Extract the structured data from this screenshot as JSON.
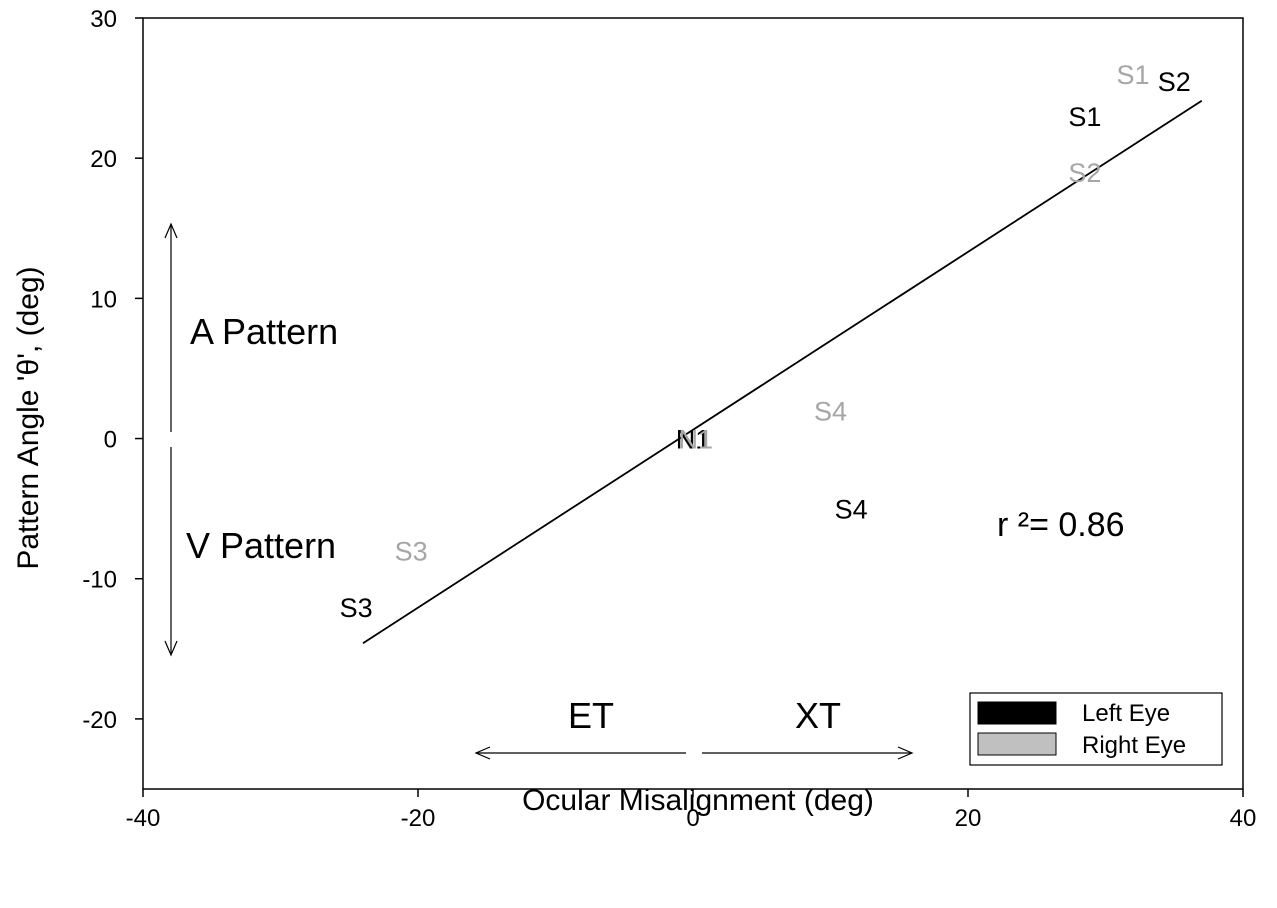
{
  "chart_data": {
    "type": "scatter",
    "xlabel": "Ocular Misalignment (deg)",
    "ylabel": "Pattern Angle 'θ', (deg)",
    "xlim": [
      -40,
      40
    ],
    "ylim": [
      -25,
      30
    ],
    "xticks": [
      -40,
      -20,
      0,
      20,
      40
    ],
    "yticks": [
      -20,
      -10,
      0,
      10,
      20,
      30
    ],
    "grid": false,
    "series": [
      {
        "name": "Left Eye",
        "color": "#000000",
        "points": [
          {
            "label": "S1",
            "x": 28.5,
            "y": 23
          },
          {
            "label": "S2",
            "x": 35,
            "y": 25.5
          },
          {
            "label": "S3",
            "x": -24.5,
            "y": -12
          },
          {
            "label": "S4",
            "x": 11.5,
            "y": -5
          },
          {
            "label": "N1",
            "x": 0,
            "y": 0
          }
        ]
      },
      {
        "name": "Right Eye",
        "color": "#a6a6a6",
        "points": [
          {
            "label": "S1",
            "x": 32,
            "y": 26
          },
          {
            "label": "S2",
            "x": 28.5,
            "y": 19
          },
          {
            "label": "S3",
            "x": -20.5,
            "y": -8
          },
          {
            "label": "S4",
            "x": 10,
            "y": 2
          },
          {
            "label": "N1",
            "x": 0.2,
            "y": 0
          }
        ]
      }
    ],
    "fit_line": {
      "x": [
        -24,
        37
      ],
      "y": [
        -14.6,
        24.1
      ]
    },
    "annotations": {
      "r_squared": "r ²= 0.86",
      "a_pattern": "A Pattern",
      "v_pattern": "V Pattern",
      "et": "ET",
      "xt": "XT"
    },
    "legend": {
      "placement": "bottom-right",
      "entries": [
        {
          "label": "Left Eye",
          "color": "#000000"
        },
        {
          "label": "Right Eye",
          "color": "#c0c0c0"
        }
      ]
    }
  }
}
